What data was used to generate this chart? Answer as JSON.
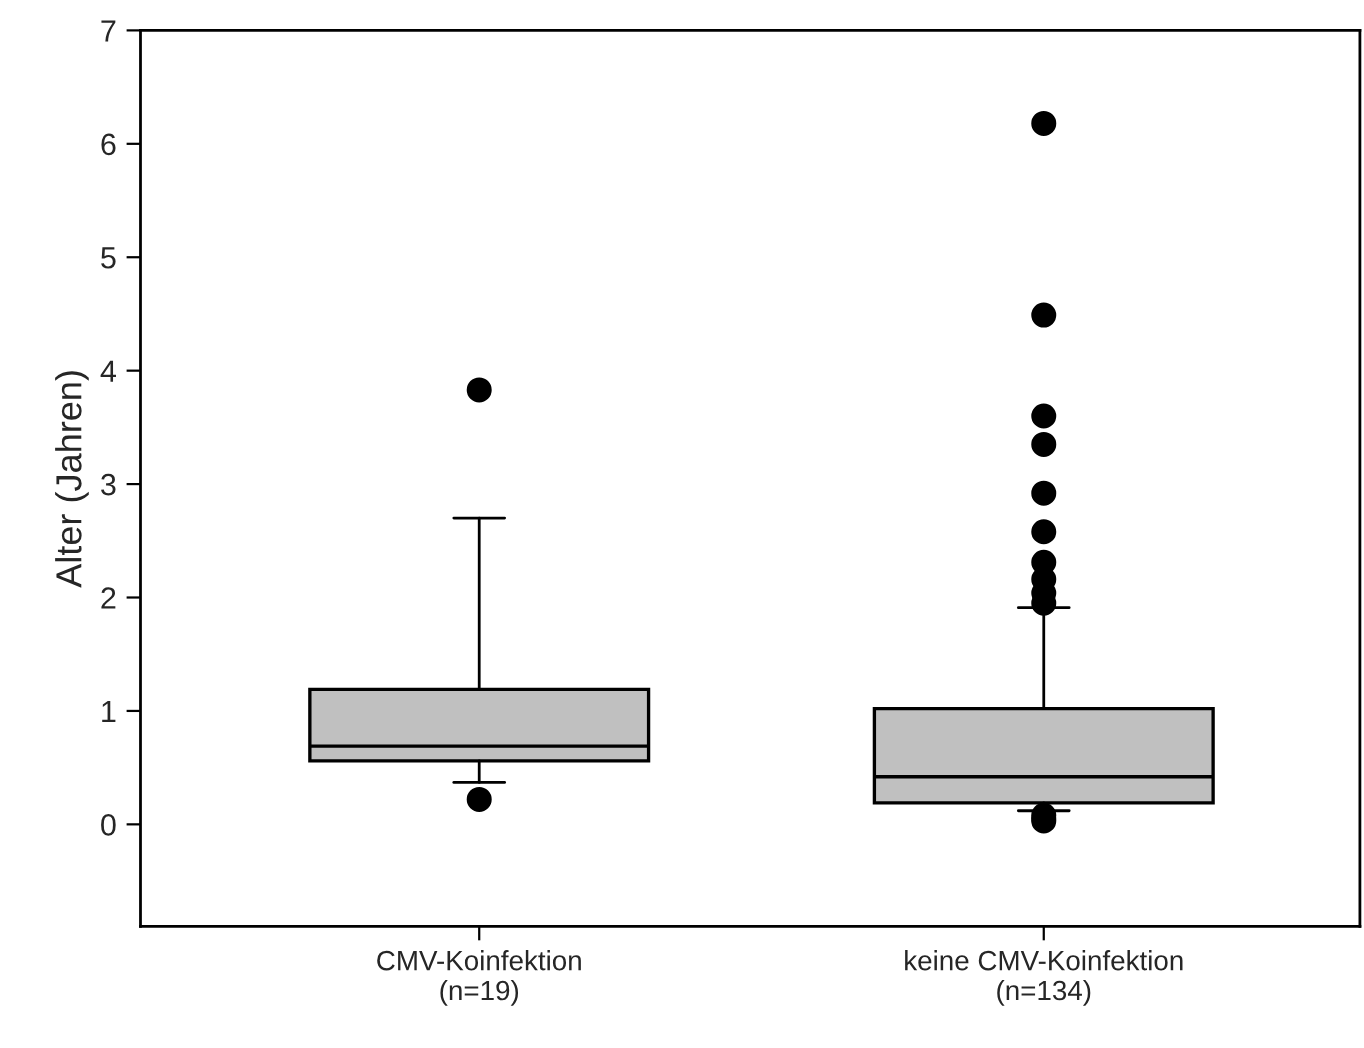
{
  "chart_data": {
    "type": "box",
    "ylabel": "Alter (Jahren)",
    "categories": [
      "CMV-Koinfektion\n(n=19)",
      "keine CMV-Koinfektion\n(n=134)"
    ],
    "boxes": [
      {
        "low": 0.37,
        "q1": 0.56,
        "median": 0.69,
        "q3": 1.19,
        "high": 2.7,
        "outliers": [
          3.83,
          0.22
        ]
      },
      {
        "low": 0.12,
        "q1": 0.19,
        "median": 0.42,
        "q3": 1.02,
        "high": 1.91,
        "outliers": [
          6.18,
          4.49,
          3.6,
          3.35,
          2.92,
          2.58,
          2.31,
          2.16,
          2.04,
          1.95,
          0.08,
          0.05,
          0.03
        ]
      }
    ],
    "color": "#c0c0c0",
    "ylim": [
      -0.9,
      7
    ],
    "yticks": [
      0,
      1,
      2,
      3,
      4,
      5,
      6,
      7
    ],
    "grid": false,
    "legend": false
  }
}
